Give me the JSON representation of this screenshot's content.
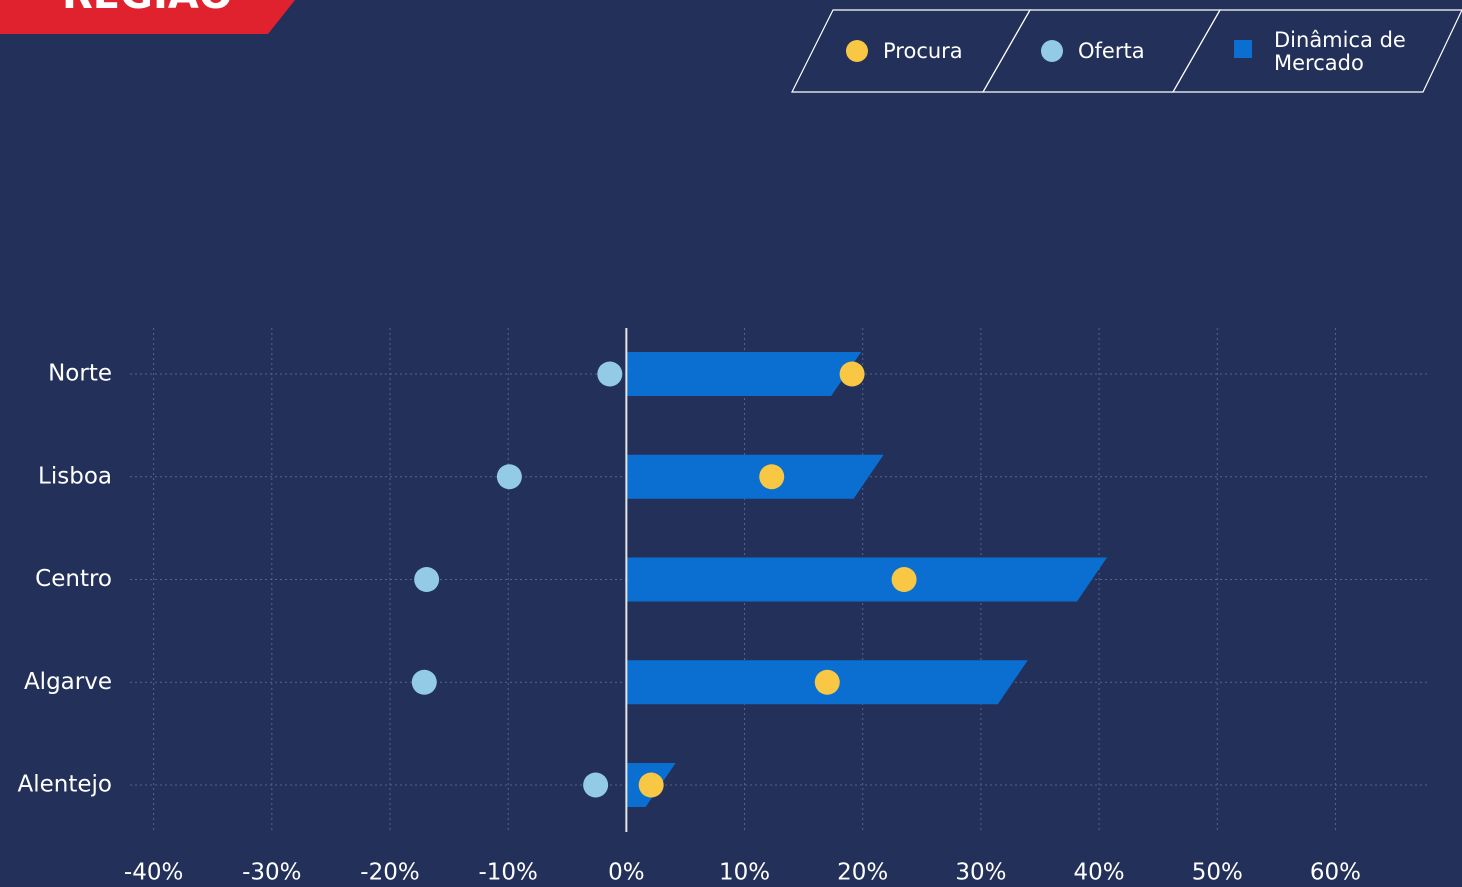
{
  "chart_data": {
    "type": "bar",
    "title": "REGIÃO",
    "categories": [
      "Norte",
      "Lisboa",
      "Centro",
      "Algarve",
      "Alentejo"
    ],
    "series": [
      {
        "name": "Procura",
        "type": "dot",
        "color": "#f8c744",
        "values": [
          19.1,
          12.3,
          23.5,
          17.0,
          2.1
        ]
      },
      {
        "name": "Oferta",
        "type": "dot",
        "color": "#93cbe6",
        "values": [
          -1.4,
          -9.9,
          -16.9,
          -17.1,
          -2.6
        ]
      },
      {
        "name": "Dinâmica de Mercado",
        "type": "bar",
        "color": "#0a6fd1",
        "values": [
          18.6,
          20.5,
          39.4,
          32.7,
          2.9
        ]
      }
    ],
    "xlim": [
      -42,
      68
    ],
    "xticks": [
      {
        "value": -40,
        "label": "-40%"
      },
      {
        "value": -30,
        "label": "-30%"
      },
      {
        "value": -20,
        "label": "-20%"
      },
      {
        "value": -10,
        "label": "-10%"
      },
      {
        "value": 0,
        "label": "0%"
      },
      {
        "value": 10,
        "label": "10%"
      },
      {
        "value": 20,
        "label": "20%"
      },
      {
        "value": 30,
        "label": "30%"
      },
      {
        "value": 40,
        "label": "40%"
      },
      {
        "value": 50,
        "label": "50%"
      },
      {
        "value": 60,
        "label": "60%"
      }
    ],
    "grid": true
  }
}
